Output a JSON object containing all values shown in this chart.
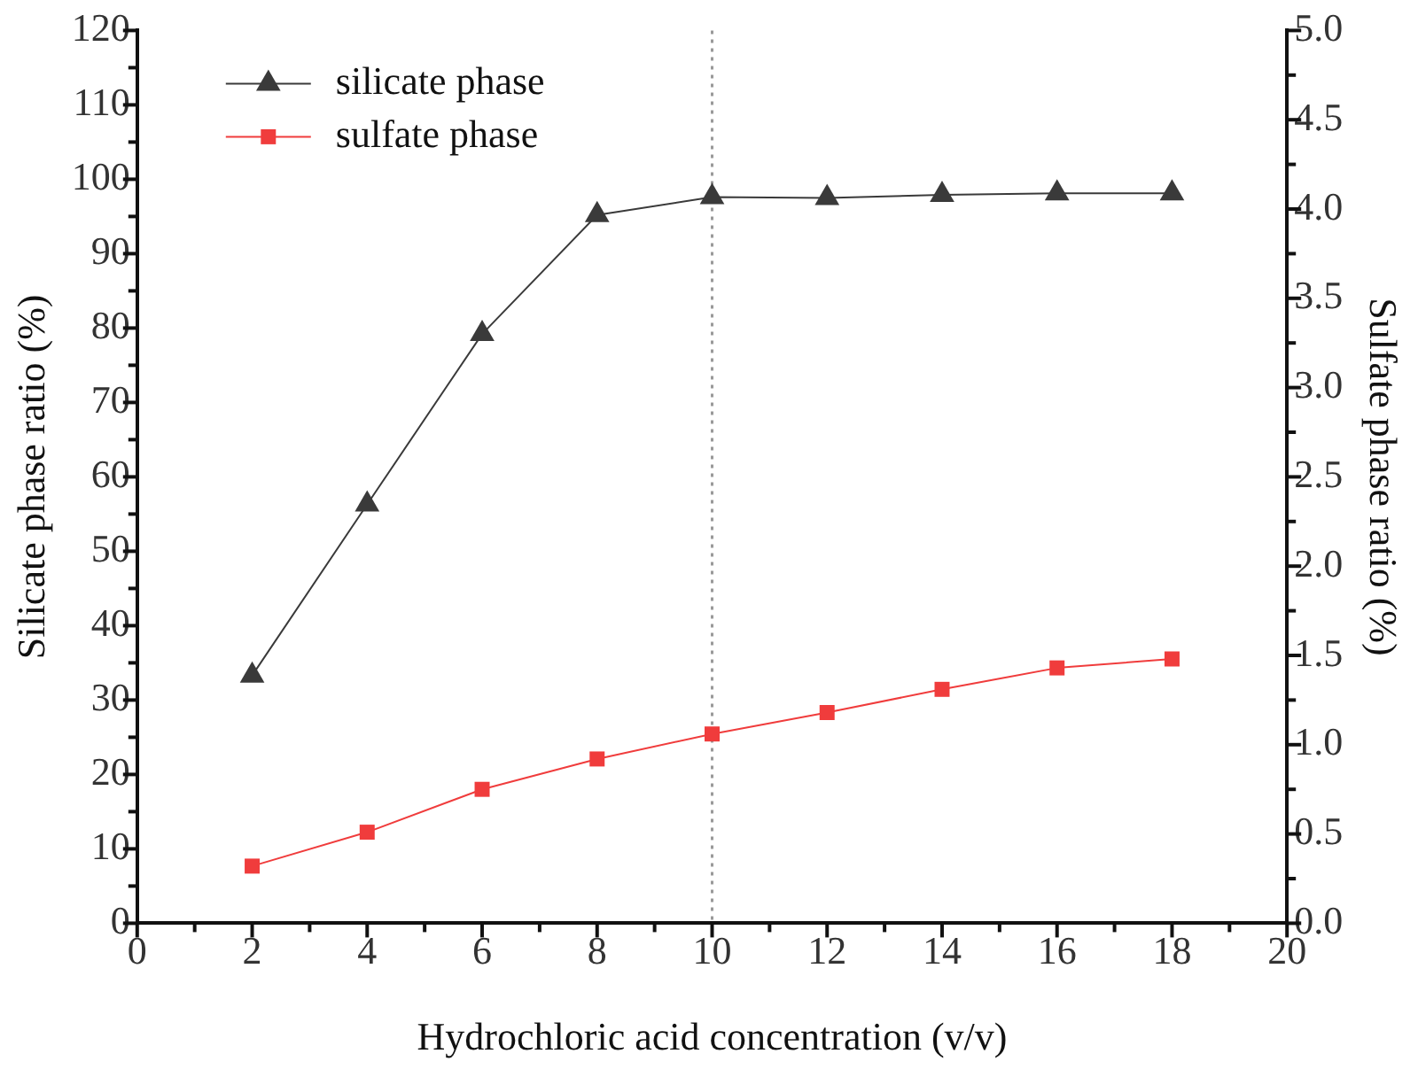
{
  "chart_data": {
    "type": "line",
    "xlabel": "Hydrochloric acid concentration (v/v)",
    "ylabel": "Silicate phase ratio (%)",
    "y2label": "Sulfate phase ratio (%)",
    "x": [
      2,
      4,
      6,
      8,
      10,
      12,
      14,
      16,
      18
    ],
    "series": [
      {
        "name": "silicate phase",
        "color": "#3a3a3a",
        "marker": "triangle",
        "values": [
          33.3,
          56.3,
          79.2,
          95.2,
          97.6,
          97.5,
          97.9,
          98.1,
          98.1
        ]
      },
      {
        "name": "sulfate phase",
        "color": "#f03c3c",
        "marker": "square",
        "axis": "y2",
        "values": [
          0.32,
          0.51,
          0.75,
          0.92,
          1.06,
          1.18,
          1.31,
          1.43,
          1.48
        ]
      }
    ],
    "xlim": [
      0,
      20
    ],
    "xticks": [
      0,
      2,
      4,
      6,
      8,
      10,
      12,
      14,
      16,
      18,
      20
    ],
    "ylim": [
      0,
      120
    ],
    "yticks": [
      0,
      10,
      20,
      30,
      40,
      50,
      60,
      70,
      80,
      90,
      100,
      110,
      120
    ],
    "y2lim": [
      0,
      5
    ],
    "y2ticks": [
      {
        "value": 0,
        "label": "0.0"
      },
      0.5,
      {
        "value": 1,
        "label": "1.0"
      },
      1.5,
      {
        "value": 2,
        "label": "2.0"
      },
      2.5,
      {
        "value": 3,
        "label": "3.0"
      },
      3.5,
      {
        "value": 4,
        "label": "4.0"
      },
      4.5,
      {
        "value": 5,
        "label": "5.0"
      }
    ],
    "ref_lines": [
      {
        "axis": "x",
        "value": 10,
        "color": "#999999",
        "line_style": "dotted"
      }
    ],
    "legend": "top left",
    "grid": false,
    "line_style": "solid"
  }
}
